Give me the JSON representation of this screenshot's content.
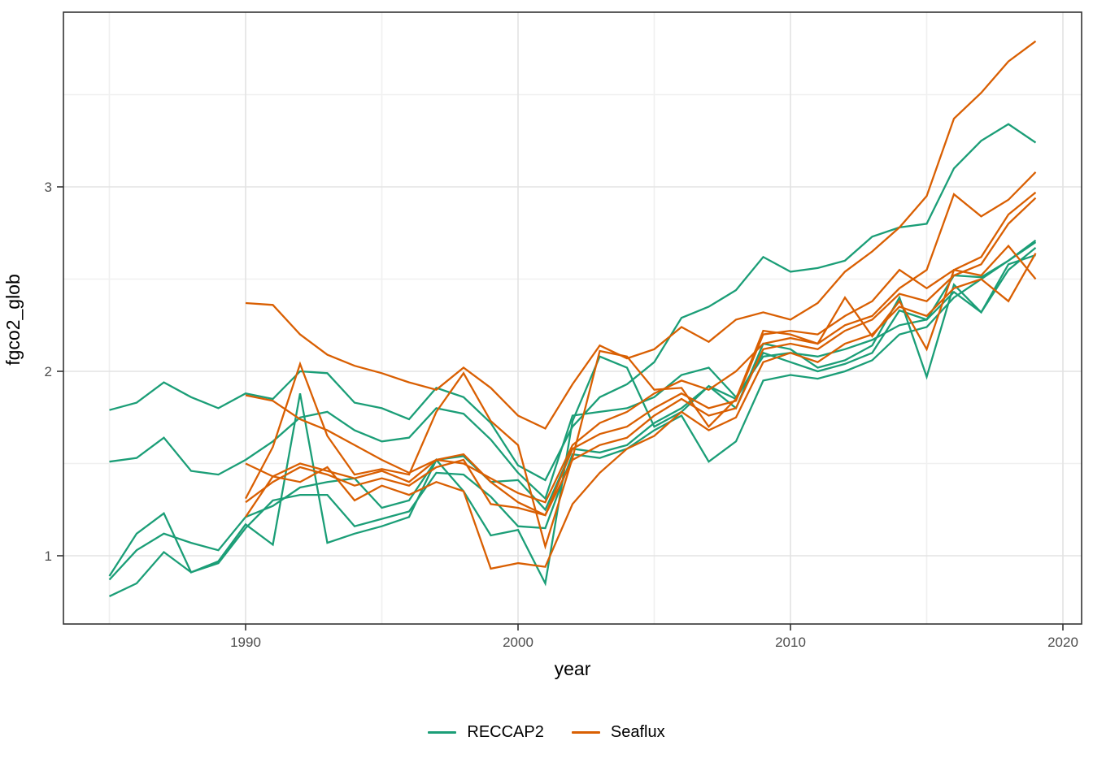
{
  "chart_data": {
    "type": "line",
    "title": "",
    "xlabel": "year",
    "ylabel": "fgco2_glob",
    "xlim": [
      1983.3,
      2020.7
    ],
    "ylim": [
      0.63,
      3.95
    ],
    "grid": "major-and-minor",
    "panel_border": true,
    "legend_position": "bottom",
    "x_ticks_major": [
      1990,
      2000,
      2010,
      2020
    ],
    "x_ticks_minor": [
      1985,
      1995,
      2005,
      2015
    ],
    "x_tick_labels": [
      "1990",
      "2000",
      "2010",
      "2020"
    ],
    "y_ticks_major": [
      1,
      2,
      3
    ],
    "y_ticks_minor": [
      1.5,
      2.5,
      3.5
    ],
    "y_tick_labels": [
      "1",
      "2",
      "3"
    ],
    "groups": [
      {
        "name": "RECCAP2",
        "color": "#1B9E77",
        "start_year": 1985,
        "series": [
          [
            1.79,
            1.83,
            1.94,
            1.86,
            1.8,
            1.88,
            1.85,
            2.0,
            1.99,
            1.83,
            1.8,
            1.74,
            1.91,
            1.86,
            1.72,
            1.49,
            1.41,
            1.7,
            1.86,
            1.93,
            2.05,
            2.29,
            2.35,
            2.44,
            2.62,
            2.54,
            2.56,
            2.6,
            2.73,
            2.78,
            2.8,
            3.1,
            3.25,
            3.34,
            3.24
          ],
          [
            1.51,
            1.53,
            1.64,
            1.46,
            1.44,
            1.52,
            1.62,
            1.75,
            1.78,
            1.68,
            1.62,
            1.64,
            1.8,
            1.77,
            1.63,
            1.45,
            1.31,
            1.76,
            1.78,
            1.8,
            1.86,
            1.98,
            2.02,
            1.86,
            2.08,
            2.1,
            2.08,
            2.12,
            2.17,
            2.25,
            2.28,
            2.52,
            2.51,
            2.6,
            2.7
          ],
          [
            0.89,
            1.12,
            1.23,
            0.91,
            0.97,
            1.17,
            1.06,
            1.88,
            1.07,
            1.12,
            1.16,
            1.21,
            1.52,
            1.35,
            1.11,
            1.14,
            0.85,
            1.73,
            2.08,
            2.02,
            1.7,
            1.78,
            1.92,
            1.8,
            2.15,
            2.12,
            2.02,
            2.06,
            2.14,
            2.4,
            1.97,
            2.47,
            2.32,
            2.58,
            2.63
          ],
          [
            0.87,
            1.03,
            1.12,
            1.07,
            1.03,
            1.21,
            1.27,
            1.37,
            1.4,
            1.42,
            1.26,
            1.3,
            1.52,
            1.54,
            1.4,
            1.41,
            1.25,
            1.58,
            1.56,
            1.6,
            1.72,
            1.8,
            1.92,
            1.85,
            2.1,
            2.05,
            2.0,
            2.04,
            2.1,
            2.33,
            2.28,
            2.43,
            2.32,
            2.55,
            2.67
          ],
          [
            0.78,
            0.85,
            1.02,
            0.91,
            0.96,
            1.15,
            1.3,
            1.33,
            1.33,
            1.16,
            1.2,
            1.24,
            1.45,
            1.44,
            1.32,
            1.16,
            1.15,
            1.55,
            1.53,
            1.58,
            1.68,
            1.76,
            1.51,
            1.62,
            1.95,
            1.98,
            1.96,
            2.0,
            2.06,
            2.2,
            2.24,
            2.4,
            2.5,
            2.6,
            2.71
          ]
        ]
      },
      {
        "name": "Seaflux",
        "color": "#D95F02",
        "start_year": 1990,
        "series": [
          [
            2.37,
            2.36,
            2.2,
            2.09,
            2.03,
            1.99,
            1.94,
            1.9,
            2.02,
            1.91,
            1.76,
            1.69,
            1.93,
            2.14,
            2.07,
            2.12,
            2.24,
            2.16,
            2.28,
            2.32,
            2.28,
            2.37,
            2.54,
            2.65,
            2.78,
            2.95,
            3.37,
            3.51,
            3.68,
            3.79
          ],
          [
            1.31,
            1.59,
            2.04,
            1.65,
            1.44,
            1.47,
            1.44,
            1.78,
            1.99,
            1.73,
            1.6,
            1.05,
            1.53,
            2.11,
            2.08,
            1.9,
            1.91,
            1.7,
            1.85,
            2.22,
            2.2,
            2.15,
            2.4,
            2.19,
            2.38,
            2.12,
            2.55,
            2.52,
            2.68,
            2.5
          ],
          [
            1.5,
            1.43,
            1.5,
            1.46,
            1.42,
            1.46,
            1.4,
            1.52,
            1.5,
            1.42,
            1.34,
            1.29,
            1.6,
            1.72,
            1.78,
            1.88,
            1.95,
            1.9,
            2.0,
            2.15,
            2.18,
            2.15,
            2.25,
            2.3,
            2.45,
            2.55,
            2.96,
            2.84,
            2.93,
            3.08
          ],
          [
            1.87,
            1.84,
            1.74,
            1.68,
            1.6,
            1.52,
            1.45,
            1.52,
            1.55,
            1.4,
            1.29,
            1.22,
            1.58,
            1.66,
            1.7,
            1.8,
            1.88,
            1.8,
            1.84,
            2.2,
            2.22,
            2.2,
            2.3,
            2.38,
            2.55,
            2.45,
            2.55,
            2.62,
            2.85,
            2.97
          ],
          [
            1.29,
            1.4,
            1.48,
            1.44,
            1.38,
            1.42,
            1.38,
            1.48,
            1.52,
            1.28,
            1.26,
            1.22,
            1.52,
            1.6,
            1.64,
            1.76,
            1.85,
            1.76,
            1.8,
            2.12,
            2.15,
            2.12,
            2.22,
            2.28,
            2.42,
            2.38,
            2.52,
            2.58,
            2.8,
            2.94
          ],
          [
            1.21,
            1.43,
            1.4,
            1.48,
            1.3,
            1.38,
            1.33,
            1.4,
            1.35,
            0.93,
            0.96,
            0.94,
            1.28,
            1.45,
            1.58,
            1.65,
            1.78,
            1.68,
            1.75,
            2.05,
            2.1,
            2.05,
            2.15,
            2.2,
            2.35,
            2.3,
            2.45,
            2.5,
            2.38,
            2.64
          ]
        ]
      }
    ],
    "colors": {
      "grid_major": "#e3e3e3",
      "grid_minor": "#f0f0f0",
      "panel_border": "#333333",
      "tick_mark": "#333333",
      "tick_text": "#4d4d4d",
      "axis_title": "#000000",
      "background": "#ffffff"
    }
  }
}
